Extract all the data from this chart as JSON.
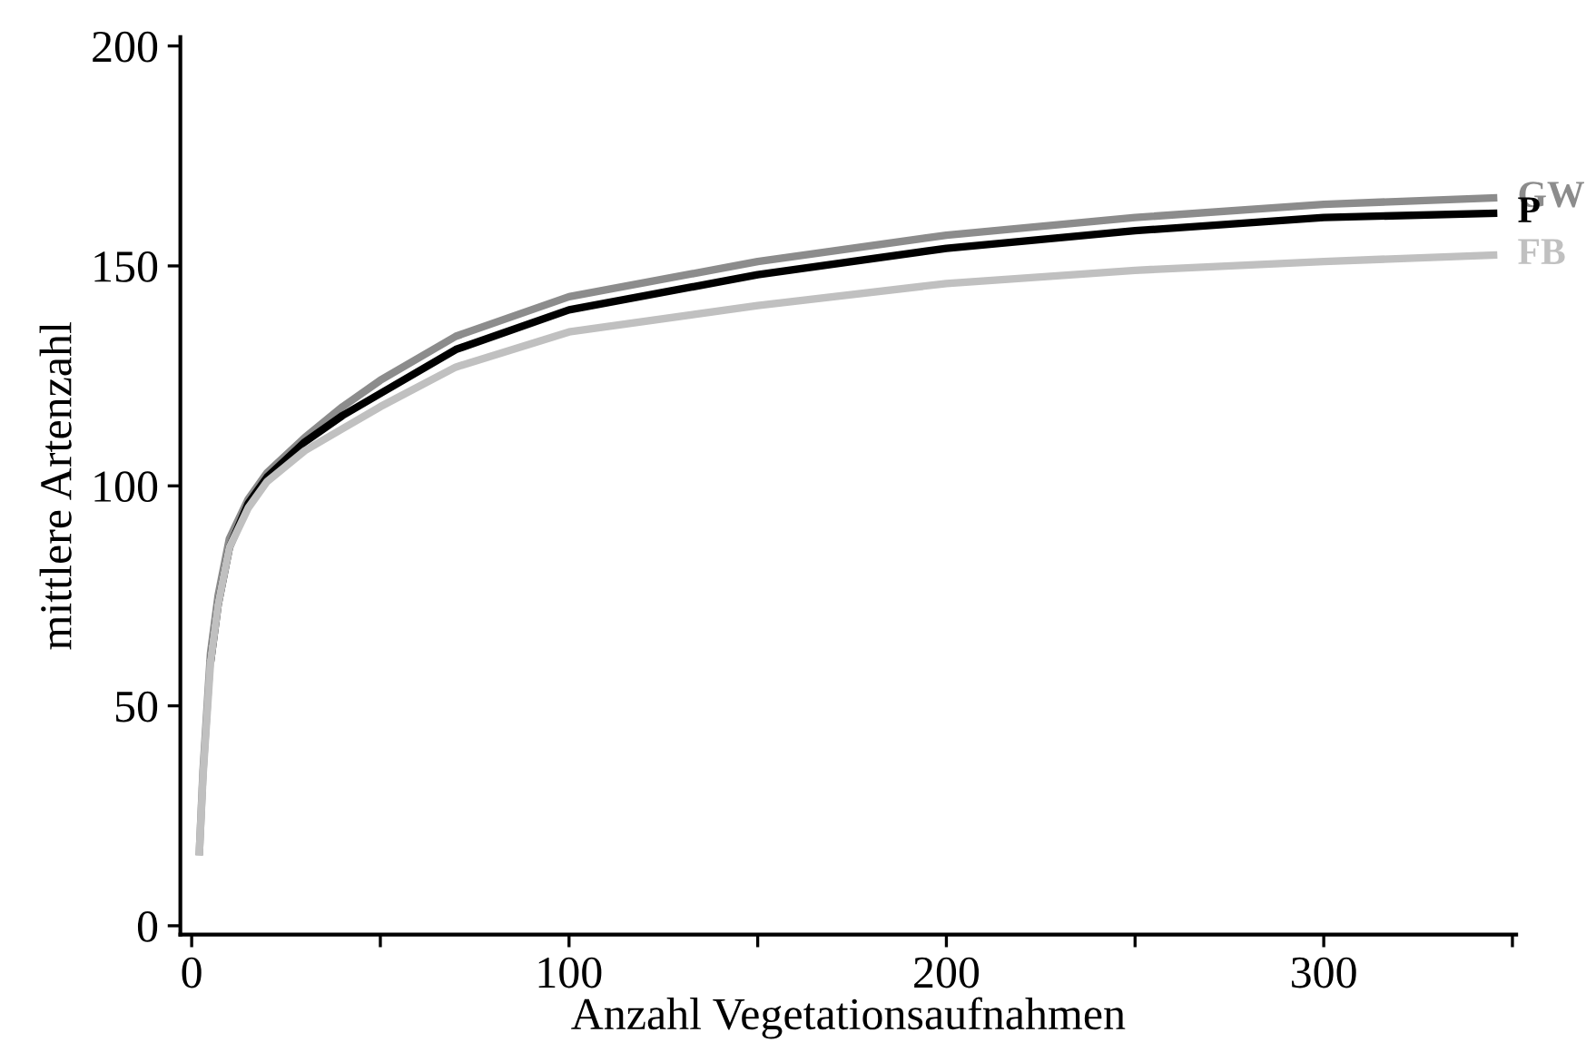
{
  "chart_data": {
    "type": "line",
    "xlabel": "Anzahl Vegetationsaufnahmen",
    "ylabel": "mittlere Artenzahl",
    "x": [
      2,
      3,
      5,
      7,
      10,
      15,
      20,
      30,
      40,
      50,
      70,
      100,
      150,
      200,
      250,
      300,
      346
    ],
    "series": [
      {
        "name": "GW",
        "color": "#8c8c8c",
        "values": [
          16,
          35,
          62,
          75,
          88,
          97,
          103,
          111,
          118,
          124,
          134,
          143,
          151,
          157,
          161,
          164,
          165.5
        ]
      },
      {
        "name": "P",
        "color": "#000000",
        "values": [
          null,
          null,
          60,
          73,
          86,
          96,
          102,
          110,
          116,
          121,
          131,
          140,
          148,
          154,
          158,
          161,
          162
        ]
      },
      {
        "name": "FB",
        "color": "#c0c0c0",
        "values": [
          16,
          34,
          60,
          73,
          86,
          95,
          101,
          108,
          113,
          118,
          127,
          135,
          141,
          146,
          149,
          151,
          152.5
        ]
      }
    ],
    "xlim": [
      -3,
      351
    ],
    "ylim": [
      -2,
      202
    ],
    "xticks": [
      0,
      {
        "value": 50,
        "label": null
      },
      100,
      {
        "value": 150,
        "label": null
      },
      200,
      {
        "value": 250,
        "label": null
      },
      300,
      {
        "value": 350,
        "label": null
      }
    ],
    "yticks": [
      0,
      50,
      100,
      150,
      200
    ],
    "grid": false,
    "legend": false,
    "marker": "none",
    "line_style": "solid"
  }
}
